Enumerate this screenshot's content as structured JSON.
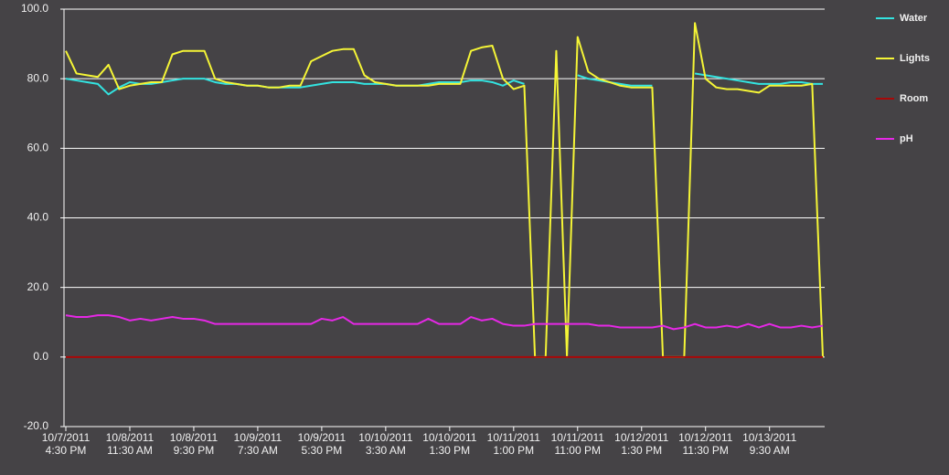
{
  "chart_data": {
    "type": "line",
    "categories": [
      "10/7/2011\n4:30 PM",
      null,
      null,
      null,
      null,
      null,
      "10/8/2011\n11:30 AM",
      null,
      null,
      null,
      null,
      null,
      "10/8/2011\n9:30 PM",
      null,
      null,
      null,
      null,
      null,
      "10/9/2011\n7:30 AM",
      null,
      null,
      null,
      null,
      null,
      "10/9/2011\n5:30 PM",
      null,
      null,
      null,
      null,
      null,
      "10/10/2011\n3:30 AM",
      null,
      null,
      null,
      null,
      null,
      "10/10/2011\n1:30 PM",
      null,
      null,
      null,
      null,
      null,
      "10/11/2011\n1:00 PM",
      null,
      null,
      null,
      null,
      null,
      "10/11/2011\n11:00 PM",
      null,
      null,
      null,
      null,
      null,
      "10/12/2011\n1:30 PM",
      null,
      null,
      null,
      null,
      null,
      "10/12/2011\n11:30 PM",
      null,
      null,
      null,
      null,
      null,
      "10/13/2011\n9:30 AM",
      null,
      null,
      null,
      null,
      null
    ],
    "series": [
      {
        "name": "Water",
        "color": "#33e3e0",
        "values": [
          80,
          79.5,
          79,
          78.5,
          75.5,
          77.5,
          79,
          78.5,
          78.5,
          79,
          79.5,
          80,
          80,
          80,
          79,
          78.5,
          78.5,
          78,
          78,
          77.5,
          77.5,
          77.5,
          77.5,
          78,
          78.5,
          79,
          79,
          79,
          78.5,
          78.5,
          78.5,
          78,
          78,
          78,
          78.5,
          79,
          79,
          79,
          79.5,
          79.5,
          79,
          78,
          79.5,
          78.5,
          null,
          null,
          null,
          null,
          81,
          80,
          79.5,
          79,
          78.5,
          78,
          78,
          78,
          null,
          null,
          null,
          81.5,
          81,
          80.5,
          80,
          79.5,
          79,
          78.5,
          78.5,
          78.5,
          79,
          79,
          78.5,
          78.5
        ]
      },
      {
        "name": "Lights",
        "color": "#f5f536",
        "values": [
          88,
          81.5,
          81,
          80.5,
          84,
          77,
          78,
          78.5,
          79,
          79,
          87,
          88,
          88,
          88,
          80,
          79,
          78.5,
          78,
          78,
          77.5,
          77.5,
          78,
          78,
          85,
          86.5,
          88,
          88.5,
          88.5,
          81,
          79,
          78.5,
          78,
          78,
          78,
          78,
          78.5,
          78.5,
          78.5,
          88,
          89,
          89.5,
          80,
          77,
          78,
          0,
          0,
          88,
          0,
          92,
          82,
          80,
          79,
          78,
          77.5,
          77.5,
          77.5,
          0,
          0,
          0,
          96,
          80,
          77.5,
          77,
          77,
          76.5,
          76,
          78,
          78,
          78,
          78,
          78.5,
          0
        ]
      },
      {
        "name": "Room",
        "color": "#a80808",
        "values": [
          0,
          0,
          0,
          0,
          0,
          0,
          0,
          0,
          0,
          0,
          0,
          0,
          0,
          0,
          0,
          0,
          0,
          0,
          0,
          0,
          0,
          0,
          0,
          0,
          0,
          0,
          0,
          0,
          0,
          0,
          0,
          0,
          0,
          0,
          0,
          0,
          0,
          0,
          0,
          0,
          0,
          0,
          0,
          0,
          0,
          0,
          0,
          0,
          0,
          0,
          0,
          0,
          0,
          0,
          0,
          0,
          0,
          0,
          0,
          0,
          0,
          0,
          0,
          0,
          0,
          0,
          0,
          0,
          0,
          0,
          0,
          0
        ]
      },
      {
        "name": "pH",
        "color": "#e628e6",
        "values": [
          12,
          11.5,
          11.5,
          12,
          12,
          11.5,
          10.5,
          11,
          10.5,
          11,
          11.5,
          11,
          11,
          10.5,
          9.5,
          9.5,
          9.5,
          9.5,
          9.5,
          9.5,
          9.5,
          9.5,
          9.5,
          9.5,
          11,
          10.5,
          11.5,
          9.5,
          9.5,
          9.5,
          9.5,
          9.5,
          9.5,
          9.5,
          11,
          9.5,
          9.5,
          9.5,
          11.5,
          10.5,
          11,
          9.5,
          9,
          9,
          9.5,
          9.5,
          9.5,
          9.5,
          9.5,
          9.5,
          9,
          9,
          8.5,
          8.5,
          8.5,
          8.5,
          9,
          8,
          8.5,
          9.5,
          8.5,
          8.5,
          9,
          8.5,
          9.5,
          8.5,
          9.5,
          8.5,
          8.5,
          9,
          8.5,
          9
        ]
      }
    ],
    "ylim": [
      -20,
      100
    ],
    "yticks": [
      {
        "value": -20,
        "label": "-20.0"
      },
      {
        "value": 0,
        "label": "0.0"
      },
      {
        "value": 20,
        "label": "20.0"
      },
      {
        "value": 40,
        "label": "40.0"
      },
      {
        "value": 60,
        "label": "60.0"
      },
      {
        "value": 80,
        "label": "80.0"
      },
      {
        "value": 100,
        "label": "100.0"
      }
    ],
    "grid": true
  }
}
